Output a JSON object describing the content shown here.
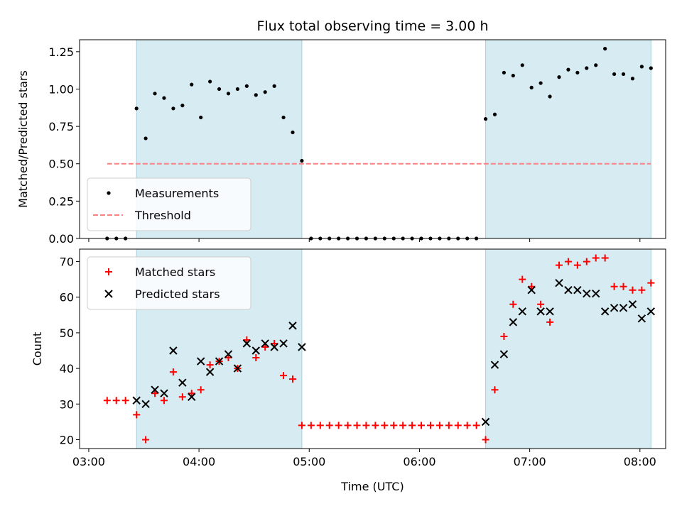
{
  "chart_data": [
    {
      "type": "scatter",
      "title": "Flux total observing time = 3.00 h",
      "xlabel": "",
      "ylabel": "Matched/Predicted stars",
      "ylim": [
        0,
        1.33
      ],
      "yticks": [
        "0.00",
        "0.25",
        "0.50",
        "0.75",
        "1.00",
        "1.25"
      ],
      "legend": "lower-left",
      "shaded_intervals": [
        [
          "03:26",
          "04:56"
        ],
        [
          "06:36",
          "08:06"
        ]
      ],
      "threshold": {
        "name": "Threshold",
        "value": 0.5,
        "x_start": "03:10",
        "x_end": "08:06",
        "color": "#ff8080"
      },
      "series": [
        {
          "name": "Measurements",
          "color": "#000000",
          "x": [
            "03:10",
            "03:15",
            "03:20",
            "03:26",
            "03:31",
            "03:36",
            "03:41",
            "03:46",
            "03:51",
            "03:56",
            "04:01",
            "04:06",
            "04:11",
            "04:16",
            "04:21",
            "04:26",
            "04:31",
            "04:36",
            "04:41",
            "04:46",
            "04:51",
            "04:56",
            "05:01",
            "05:06",
            "05:11",
            "05:16",
            "05:21",
            "05:26",
            "05:31",
            "05:36",
            "05:41",
            "05:46",
            "05:51",
            "05:56",
            "06:01",
            "06:06",
            "06:11",
            "06:16",
            "06:21",
            "06:26",
            "06:31",
            "06:36",
            "06:41",
            "06:46",
            "06:51",
            "06:56",
            "07:01",
            "07:06",
            "07:11",
            "07:16",
            "07:21",
            "07:26",
            "07:31",
            "07:36",
            "07:41",
            "07:46",
            "07:51",
            "07:56",
            "08:01",
            "08:06"
          ],
          "y": [
            0,
            0,
            0,
            0.87,
            0.67,
            0.97,
            0.94,
            0.87,
            0.89,
            1.03,
            0.81,
            1.05,
            1.0,
            0.97,
            1.0,
            1.02,
            0.96,
            0.98,
            1.02,
            0.81,
            0.71,
            0.52,
            0,
            0,
            0,
            0,
            0,
            0,
            0,
            0,
            0,
            0,
            0,
            0,
            0,
            0,
            0,
            0,
            0,
            0,
            0,
            0.8,
            0.83,
            1.11,
            1.09,
            1.16,
            1.01,
            1.04,
            0.95,
            1.08,
            1.13,
            1.11,
            1.14,
            1.16,
            1.27,
            1.1,
            1.1,
            1.07,
            1.15,
            1.14
          ]
        }
      ]
    },
    {
      "type": "scatter",
      "title": "",
      "xlabel": "Time (UTC)",
      "ylabel": "Count",
      "ylim": [
        17.5,
        73.5
      ],
      "yticks": [
        "20",
        "30",
        "40",
        "50",
        "60",
        "70"
      ],
      "xticks": [
        "03:00",
        "04:00",
        "05:00",
        "06:00",
        "07:00",
        "08:00"
      ],
      "xlim": [
        "02:55",
        "08:14"
      ],
      "legend": "upper-left",
      "shaded_intervals": [
        [
          "03:26",
          "04:56"
        ],
        [
          "06:36",
          "08:06"
        ]
      ],
      "series": [
        {
          "name": "Matched stars",
          "marker": "plus",
          "color": "#ff0000",
          "x": [
            "03:10",
            "03:15",
            "03:20",
            "03:26",
            "03:31",
            "03:36",
            "03:41",
            "03:46",
            "03:51",
            "03:56",
            "04:01",
            "04:06",
            "04:11",
            "04:16",
            "04:21",
            "04:26",
            "04:31",
            "04:36",
            "04:41",
            "04:46",
            "04:51",
            "04:56",
            "05:01",
            "05:06",
            "05:11",
            "05:16",
            "05:21",
            "05:26",
            "05:31",
            "05:36",
            "05:41",
            "05:46",
            "05:51",
            "05:56",
            "06:01",
            "06:06",
            "06:11",
            "06:16",
            "06:21",
            "06:26",
            "06:31",
            "06:36",
            "06:41",
            "06:46",
            "06:51",
            "06:56",
            "07:01",
            "07:06",
            "07:11",
            "07:16",
            "07:21",
            "07:26",
            "07:31",
            "07:36",
            "07:41",
            "07:46",
            "07:51",
            "07:56",
            "08:01",
            "08:06"
          ],
          "y": [
            31,
            31,
            31,
            27,
            20,
            33,
            31,
            39,
            32,
            33,
            34,
            41,
            42,
            43,
            40,
            48,
            43,
            46,
            47,
            38,
            37,
            24,
            24,
            24,
            24,
            24,
            24,
            24,
            24,
            24,
            24,
            24,
            24,
            24,
            24,
            24,
            24,
            24,
            24,
            24,
            24,
            20,
            34,
            49,
            58,
            65,
            63,
            58,
            53,
            69,
            70,
            69,
            70,
            71,
            71,
            63,
            63,
            62,
            62,
            64
          ]
        },
        {
          "name": "Predicted stars",
          "marker": "x",
          "color": "#000000",
          "x": [
            "03:26",
            "03:31",
            "03:36",
            "03:41",
            "03:46",
            "03:51",
            "03:56",
            "04:01",
            "04:06",
            "04:11",
            "04:16",
            "04:21",
            "04:26",
            "04:31",
            "04:36",
            "04:41",
            "04:46",
            "04:51",
            "04:56",
            "06:36",
            "06:41",
            "06:46",
            "06:51",
            "06:56",
            "07:01",
            "07:06",
            "07:11",
            "07:16",
            "07:21",
            "07:26",
            "07:31",
            "07:36",
            "07:41",
            "07:46",
            "07:51",
            "07:56",
            "08:01",
            "08:06"
          ],
          "y": [
            31,
            30,
            34,
            33,
            45,
            36,
            32,
            42,
            39,
            42,
            44,
            40,
            47,
            45,
            47,
            46,
            47,
            52,
            46,
            25,
            41,
            44,
            53,
            56,
            62,
            56,
            56,
            64,
            62,
            62,
            61,
            61,
            56,
            57,
            57,
            58,
            54,
            56
          ]
        }
      ]
    }
  ]
}
